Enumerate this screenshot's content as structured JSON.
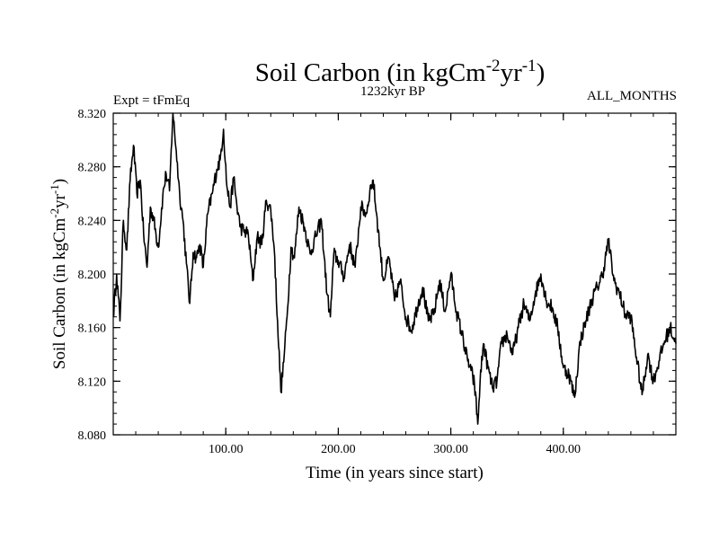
{
  "chart_data": {
    "type": "line",
    "title": {
      "main": "Soil Carbon (in kgCm",
      "sup1": "-2",
      "mid": "yr",
      "sup2": "-1",
      "end": ")"
    },
    "subtitle_left": "Expt = tFmEq",
    "subtitle_center": "1232kyr BP",
    "subtitle_right": "ALL_MONTHS",
    "xlabel": "Time (in years since start)",
    "ylabel": {
      "main": "Soil Carbon (in kgCm",
      "sup1": "-2",
      "mid": "yr",
      "sup2": "-1",
      "end": ")"
    },
    "xlim": [
      0,
      500
    ],
    "ylim": [
      8.08,
      8.32
    ],
    "x_ticks": [
      {
        "value": 100,
        "label": "100.00"
      },
      {
        "value": 200,
        "label": "200.00"
      },
      {
        "value": 300,
        "label": "300.00"
      },
      {
        "value": 400,
        "label": "400.00"
      }
    ],
    "y_ticks": [
      {
        "value": 8.08,
        "label": "8.080"
      },
      {
        "value": 8.12,
        "label": "8.120"
      },
      {
        "value": 8.16,
        "label": "8.160"
      },
      {
        "value": 8.2,
        "label": "8.200"
      },
      {
        "value": 8.24,
        "label": "8.240"
      },
      {
        "value": 8.28,
        "label": "8.280"
      },
      {
        "value": 8.32,
        "label": "8.320"
      }
    ],
    "series": [
      {
        "name": "Soil Carbon",
        "color": "#000000",
        "x": [
          0,
          3,
          6,
          9,
          12,
          15,
          18,
          21,
          24,
          27,
          30,
          33,
          36,
          40,
          44,
          47,
          50,
          53,
          56,
          59,
          62,
          65,
          68,
          71,
          74,
          77,
          80,
          84,
          88,
          92,
          95,
          98,
          101,
          104,
          107,
          110,
          113,
          116,
          120,
          124,
          128,
          132,
          136,
          140,
          143,
          146,
          149,
          152,
          155,
          158,
          161,
          165,
          170,
          175,
          180,
          185,
          190,
          193,
          196,
          200,
          205,
          210,
          215,
          220,
          225,
          228,
          231,
          234,
          237,
          240,
          245,
          250,
          255,
          260,
          265,
          270,
          275,
          280,
          285,
          290,
          295,
          300,
          305,
          310,
          315,
          318,
          321,
          324,
          326,
          329,
          333,
          337,
          341,
          345,
          350,
          355,
          360,
          365,
          370,
          375,
          380,
          385,
          390,
          395,
          400,
          405,
          410,
          415,
          420,
          425,
          430,
          435,
          440,
          445,
          450,
          455,
          460,
          465,
          470,
          475,
          480,
          485,
          490,
          495,
          500
        ],
        "values": [
          8.168,
          8.2,
          8.165,
          8.24,
          8.218,
          8.27,
          8.296,
          8.26,
          8.27,
          8.23,
          8.205,
          8.25,
          8.24,
          8.22,
          8.258,
          8.275,
          8.262,
          8.32,
          8.292,
          8.26,
          8.24,
          8.208,
          8.178,
          8.216,
          8.212,
          8.222,
          8.205,
          8.245,
          8.26,
          8.278,
          8.285,
          8.308,
          8.265,
          8.25,
          8.272,
          8.25,
          8.235,
          8.232,
          8.23,
          8.195,
          8.228,
          8.222,
          8.255,
          8.248,
          8.22,
          8.165,
          8.112,
          8.14,
          8.175,
          8.22,
          8.212,
          8.25,
          8.235,
          8.215,
          8.228,
          8.24,
          8.185,
          8.168,
          8.215,
          8.21,
          8.198,
          8.222,
          8.205,
          8.25,
          8.245,
          8.262,
          8.27,
          8.245,
          8.22,
          8.195,
          8.212,
          8.18,
          8.195,
          8.168,
          8.158,
          8.175,
          8.19,
          8.165,
          8.17,
          8.195,
          8.172,
          8.2,
          8.172,
          8.155,
          8.135,
          8.128,
          8.118,
          8.088,
          8.12,
          8.148,
          8.13,
          8.115,
          8.12,
          8.148,
          8.155,
          8.14,
          8.16,
          8.178,
          8.165,
          8.185,
          8.2,
          8.18,
          8.175,
          8.16,
          8.13,
          8.125,
          8.108,
          8.15,
          8.165,
          8.18,
          8.19,
          8.2,
          8.225,
          8.195,
          8.185,
          8.17,
          8.168,
          8.138,
          8.11,
          8.14,
          8.12,
          8.135,
          8.15,
          8.16,
          8.148
        ]
      }
    ]
  }
}
